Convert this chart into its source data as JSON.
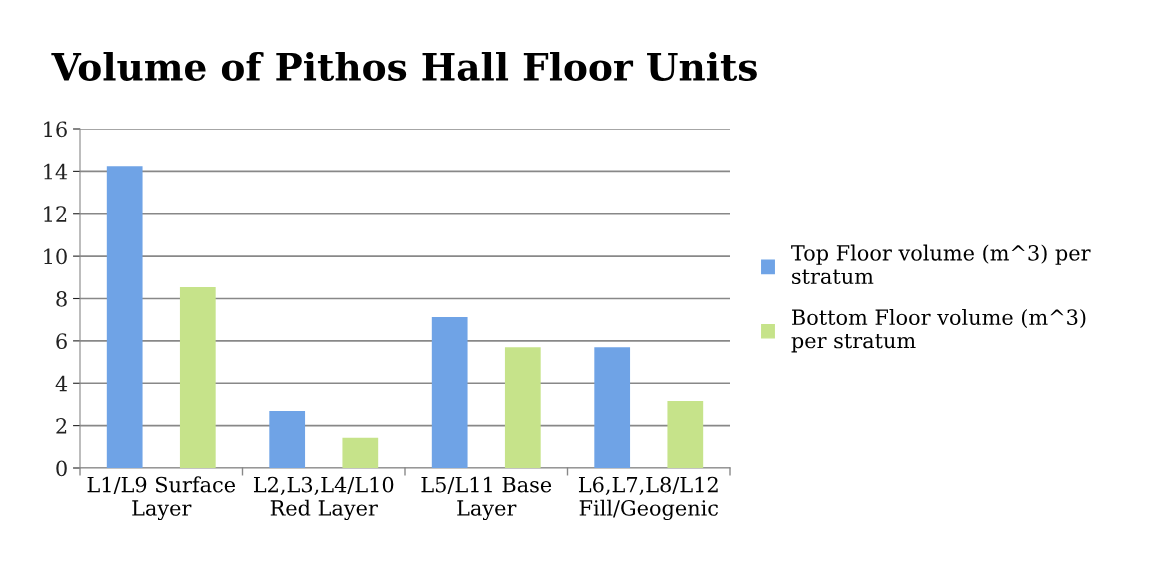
{
  "chart_data": {
    "type": "bar",
    "title": "Volume of Pithos Hall Floor Units",
    "categories": [
      "L1/L9 Surface\nLayer",
      "L2,L3,L4/L10\nRed Layer",
      "L5/L11 Base\nLayer",
      "L6,L7,L8/L12\nFill/Geogenic"
    ],
    "series": [
      {
        "name": "Top Floor volume (m^3) per\nstratum",
        "color": "#6fa3e6",
        "values": [
          14.24,
          2.69,
          7.13,
          5.7
        ]
      },
      {
        "name": "Bottom Floor volume (m^3)\nper stratum",
        "color": "#c6e38a",
        "values": [
          8.54,
          1.43,
          5.7,
          3.16
        ]
      }
    ],
    "ylim": [
      0,
      16
    ],
    "yticks": [
      0,
      2,
      4,
      6,
      8,
      10,
      12,
      14,
      16
    ],
    "grid": "y",
    "legend": "right"
  }
}
